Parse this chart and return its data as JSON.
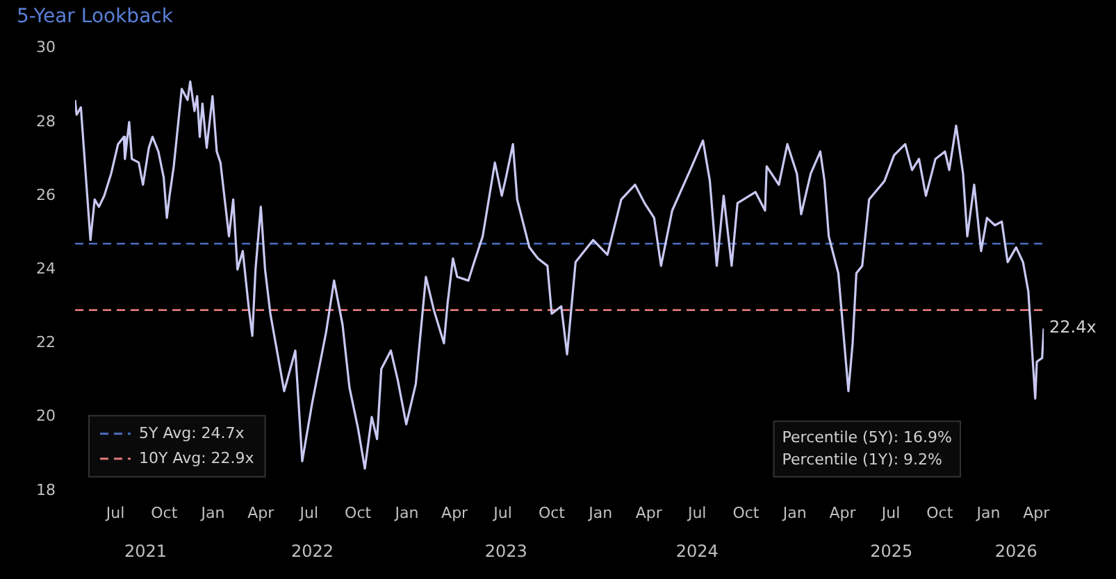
{
  "chart_data": {
    "type": "line",
    "subtitle": "5-Year Lookback",
    "x": [
      "2021-04-16",
      "2021-04-19",
      "2021-04-27",
      "2021-05-15",
      "2021-05-23",
      "2021-05-31",
      "2021-06-10",
      "2021-06-23",
      "2021-07-06",
      "2021-07-17",
      "2021-07-19",
      "2021-07-27",
      "2021-08-01",
      "2021-08-14",
      "2021-08-22",
      "2021-09-02",
      "2021-09-09",
      "2021-09-20",
      "2021-09-30",
      "2021-10-06",
      "2021-10-11",
      "2021-10-19",
      "2021-11-03",
      "2021-11-14",
      "2021-11-19",
      "2021-11-27",
      "2021-12-02",
      "2021-12-07",
      "2021-12-12",
      "2021-12-20",
      "2021-12-31",
      "2022-01-08",
      "2022-01-15",
      "2022-01-31",
      "2022-02-08",
      "2022-02-16",
      "2022-02-26",
      "2022-03-09",
      "2022-03-16",
      "2022-03-22",
      "2022-04-01",
      "2022-04-09",
      "2022-04-19",
      "2022-05-15",
      "2022-06-05",
      "2022-06-18",
      "2022-07-07",
      "2022-08-02",
      "2022-08-17",
      "2022-09-02",
      "2022-09-15",
      "2022-10-01",
      "2022-10-14",
      "2022-10-27",
      "2022-11-06",
      "2022-11-14",
      "2022-12-02",
      "2022-12-15",
      "2022-12-31",
      "2023-01-18",
      "2023-02-06",
      "2023-02-21",
      "2023-03-12",
      "2023-03-19",
      "2023-03-29",
      "2023-04-06",
      "2023-04-27",
      "2023-05-08",
      "2023-05-24",
      "2023-06-16",
      "2023-06-29",
      "2023-07-07",
      "2023-07-20",
      "2023-07-28",
      "2023-08-20",
      "2023-09-05",
      "2023-09-23",
      "2023-10-01",
      "2023-10-19",
      "2023-10-30",
      "2023-11-15",
      "2023-12-18",
      "2024-01-14",
      "2024-02-09",
      "2024-03-06",
      "2024-03-24",
      "2024-04-11",
      "2024-04-24",
      "2024-05-15",
      "2024-06-18",
      "2024-07-12",
      "2024-07-25",
      "2024-08-07",
      "2024-08-20",
      "2024-09-04",
      "2024-09-15",
      "2024-10-19",
      "2024-11-06",
      "2024-11-09",
      "2024-12-02",
      "2024-12-18",
      "2025-01-05",
      "2025-01-13",
      "2025-01-31",
      "2025-02-18",
      "2025-02-26",
      "2025-03-06",
      "2025-03-24",
      "2025-04-12",
      "2025-04-20",
      "2025-04-27",
      "2025-05-08",
      "2025-05-21",
      "2025-06-19",
      "2025-07-07",
      "2025-07-28",
      "2025-08-10",
      "2025-08-23",
      "2025-09-05",
      "2025-09-23",
      "2025-10-11",
      "2025-10-19",
      "2025-11-01",
      "2025-11-14",
      "2025-11-22",
      "2025-12-05",
      "2025-12-18",
      "2025-12-29",
      "2026-01-13",
      "2026-01-26",
      "2026-02-06",
      "2026-02-22",
      "2026-03-07",
      "2026-03-17",
      "2026-03-25",
      "2026-03-30",
      "2026-04-02",
      "2026-04-12",
      "2026-04-15"
    ],
    "series": [
      {
        "color": "#c8c8f2",
        "values": [
          28.6,
          28.2,
          28.4,
          24.8,
          25.9,
          25.7,
          26.0,
          26.6,
          27.4,
          27.6,
          27.0,
          28.0,
          27.0,
          26.9,
          26.3,
          27.3,
          27.6,
          27.2,
          26.5,
          25.4,
          26.0,
          26.8,
          28.9,
          28.6,
          29.1,
          28.3,
          28.7,
          27.6,
          28.5,
          27.3,
          28.7,
          27.2,
          26.9,
          24.9,
          25.9,
          24.0,
          24.5,
          23.0,
          22.2,
          24.0,
          25.7,
          24.0,
          22.8,
          20.7,
          21.8,
          18.8,
          20.4,
          22.3,
          23.7,
          22.5,
          20.8,
          19.7,
          18.6,
          20.0,
          19.4,
          21.3,
          21.8,
          21.0,
          19.8,
          20.9,
          23.8,
          22.9,
          22.0,
          23.1,
          24.3,
          23.8,
          23.7,
          24.2,
          24.9,
          26.9,
          26.0,
          26.5,
          27.4,
          25.9,
          24.6,
          24.3,
          24.1,
          22.8,
          23.0,
          21.7,
          24.2,
          24.8,
          24.4,
          25.9,
          26.3,
          25.8,
          25.4,
          24.1,
          25.6,
          26.7,
          27.5,
          26.4,
          24.1,
          26.0,
          24.1,
          25.8,
          26.1,
          25.6,
          26.8,
          26.3,
          27.4,
          26.6,
          25.5,
          26.6,
          27.2,
          26.4,
          24.9,
          23.9,
          20.7,
          22.0,
          23.9,
          24.1,
          25.9,
          26.4,
          27.1,
          27.4,
          26.7,
          27.0,
          26.0,
          27.0,
          27.2,
          26.7,
          27.9,
          26.6,
          24.9,
          26.3,
          24.5,
          25.4,
          25.2,
          25.3,
          24.2,
          24.6,
          24.2,
          23.4,
          21.6,
          20.5,
          21.5,
          21.6,
          22.4
        ]
      }
    ],
    "xticks": [
      {
        "value": "2021-07-01",
        "label": "Jul"
      },
      {
        "value": "2021-10-01",
        "label": "Oct"
      },
      {
        "value": "2022-01-01",
        "label": "Jan"
      },
      {
        "value": "2022-04-01",
        "label": "Apr"
      },
      {
        "value": "2022-07-01",
        "label": "Jul"
      },
      {
        "value": "2022-10-01",
        "label": "Oct"
      },
      {
        "value": "2023-01-01",
        "label": "Jan"
      },
      {
        "value": "2023-04-01",
        "label": "Apr"
      },
      {
        "value": "2023-07-01",
        "label": "Jul"
      },
      {
        "value": "2023-10-01",
        "label": "Oct"
      },
      {
        "value": "2024-01-01",
        "label": "Jan"
      },
      {
        "value": "2024-04-01",
        "label": "Apr"
      },
      {
        "value": "2024-07-01",
        "label": "Jul"
      },
      {
        "value": "2024-10-01",
        "label": "Oct"
      },
      {
        "value": "2025-01-01",
        "label": "Jan"
      },
      {
        "value": "2025-04-01",
        "label": "Apr"
      },
      {
        "value": "2025-07-01",
        "label": "Jul"
      },
      {
        "value": "2025-10-01",
        "label": "Oct"
      },
      {
        "value": "2026-01-01",
        "label": "Jan"
      },
      {
        "value": "2026-04-01",
        "label": "Apr"
      }
    ],
    "xlim": [
      "2021-04-16",
      "2026-04-15"
    ],
    "x2lim": [
      "2021-04-16",
      "2026-04-15"
    ],
    "x2ticks": [
      {
        "value": "2021-08-27",
        "label": "2021"
      },
      {
        "value": "2022-07-07",
        "label": "2022"
      },
      {
        "value": "2023-07-07",
        "label": "2023"
      },
      {
        "value": "2024-07-01",
        "label": "2024"
      },
      {
        "value": "2025-07-02",
        "label": "2025"
      },
      {
        "value": "2026-02-22",
        "label": "2026"
      }
    ],
    "ylim": [
      18,
      30
    ],
    "yticks": [
      18,
      20,
      22,
      24,
      26,
      28,
      30
    ],
    "ref_lines": [
      {
        "axis": "y",
        "value": 24.7,
        "label": "5Y Avg: 24.7x",
        "color": "#4a6fc4",
        "line_style": "dashed"
      },
      {
        "axis": "y",
        "value": 22.9,
        "label": "10Y Avg: 22.9x",
        "color": "#e07878",
        "line_style": "dashed"
      }
    ],
    "annotations": [
      {
        "text": "22.4x",
        "x": "2026-04-15",
        "y": 22.4
      },
      "Percentile (5Y): 16.9%",
      "Percentile (1Y): 9.2%"
    ],
    "legend": "bottom left",
    "marker": "none",
    "line_style": "solid",
    "grid": false
  }
}
